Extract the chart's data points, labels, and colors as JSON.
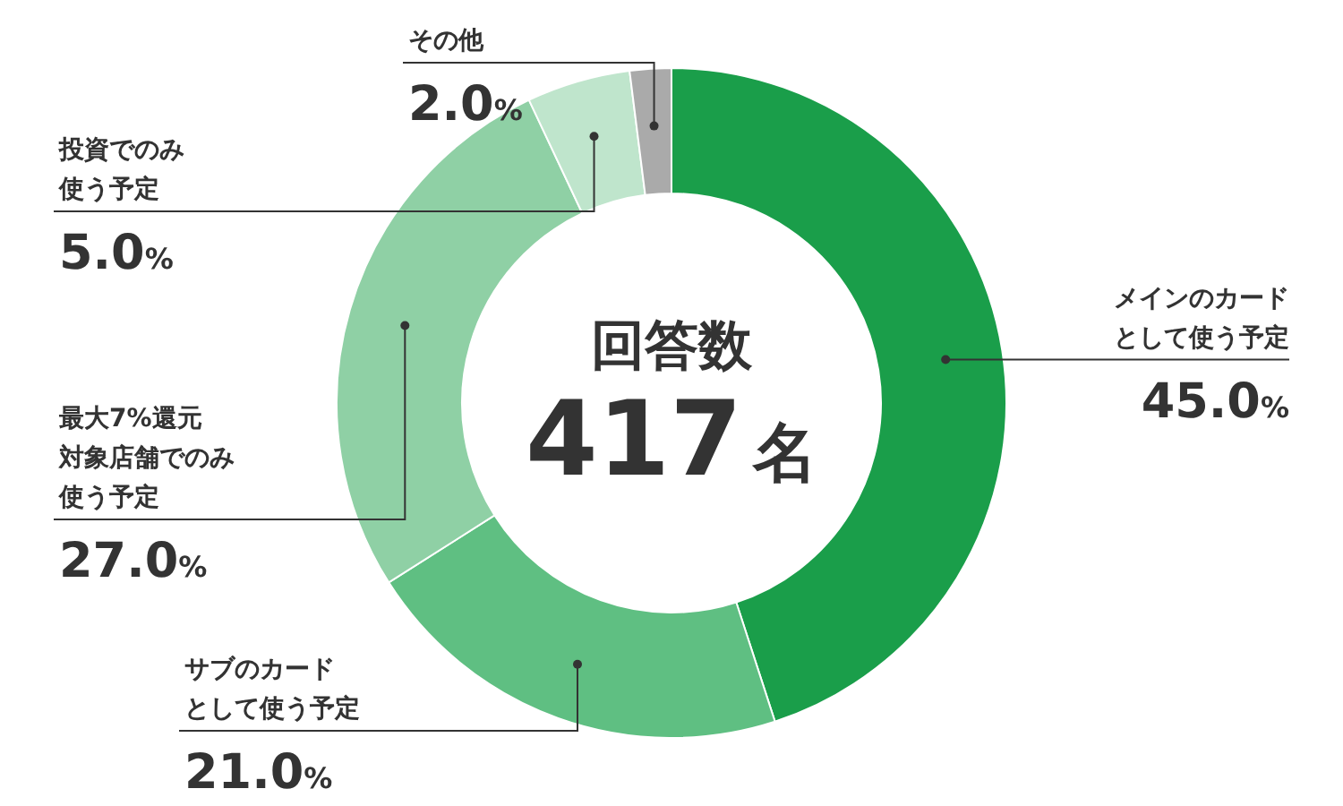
{
  "chart_data": {
    "type": "donut",
    "categories": [
      "メインのカードとして使う予定",
      "サブのカードとして使う予定",
      "最大7%還元対象店舗でのみ使う予定",
      "投資でのみ使う予定",
      "その他"
    ],
    "values": [
      45.0,
      21.0,
      27.0,
      5.0,
      2.0
    ],
    "value_labels": [
      "45.0%",
      "21.0%",
      "27.0%",
      "5.0%",
      "2.0%"
    ],
    "colors": [
      "#1a9e4a",
      "#5fbf82",
      "#8fd0a5",
      "#bfe5cc",
      "#aaaaaa"
    ],
    "annotations": [
      "回答数",
      "417名"
    ]
  }
}
